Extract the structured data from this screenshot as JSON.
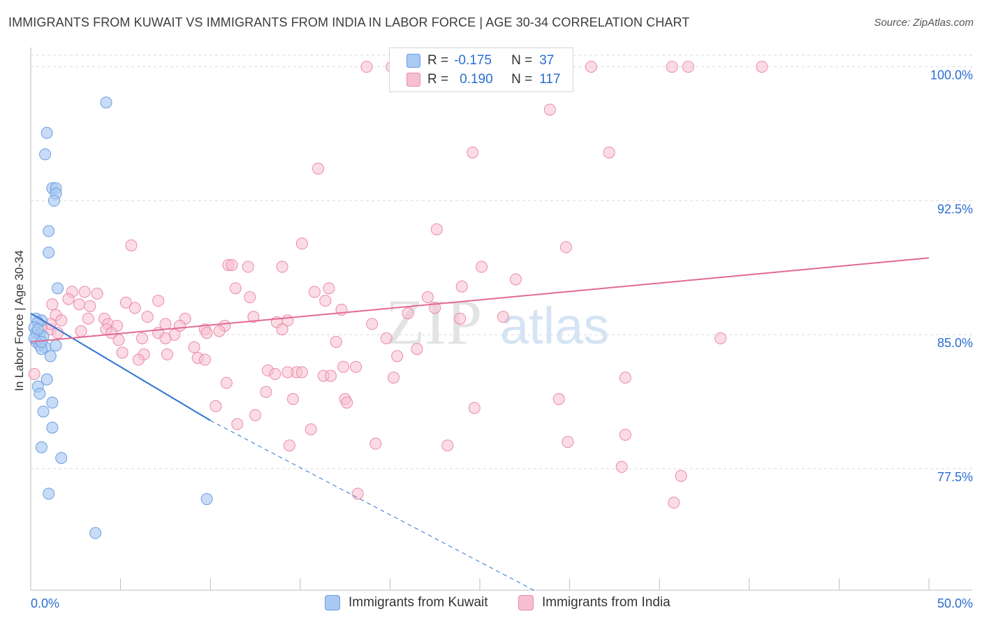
{
  "title": "IMMIGRANTS FROM KUWAIT VS IMMIGRANTS FROM INDIA IN LABOR FORCE | AGE 30-34 CORRELATION CHART",
  "source": "Source: ZipAtlas.com",
  "watermark": {
    "zip": "ZIP",
    "atlas": "atlas"
  },
  "colors": {
    "kuwait_fill": "#aac9f3",
    "kuwait_stroke": "#6a9fe0",
    "kuwait_line": "#2f74d0",
    "india_fill": "#f7bfd0",
    "india_stroke": "#e98aa8",
    "india_line": "#e26a96",
    "value_blue": "#2b6dd0",
    "grid": "#d9d9d9"
  },
  "legend": {
    "r_label": "R =",
    "n_label": "N =",
    "kuwait": {
      "r": "-0.175",
      "n": "37"
    },
    "india": {
      "r": "0.190",
      "n": "117"
    }
  },
  "chart_data": {
    "type": "scatter",
    "xlabel": "",
    "ylabel": "In Labor Force | Age 30-34",
    "xlim": [
      0,
      50
    ],
    "ylim": [
      70.7,
      101.0
    ],
    "x_tick_labels": {
      "left": "0.0%",
      "right": "50.0%"
    },
    "y_ticks": [
      {
        "value": 100.0,
        "label": "100.0%"
      },
      {
        "value": 92.5,
        "label": "92.5%"
      },
      {
        "value": 85.0,
        "label": "85.0%"
      },
      {
        "value": 77.5,
        "label": "77.5%"
      }
    ],
    "grid": "horizontal dashed",
    "legend_position": "top-center",
    "series": [
      {
        "name": "Immigrants from Kuwait",
        "points": [
          [
            4.2,
            98.0
          ],
          [
            0.9,
            96.3
          ],
          [
            0.8,
            95.1
          ],
          [
            1.2,
            93.2
          ],
          [
            1.4,
            93.2
          ],
          [
            1.4,
            92.9
          ],
          [
            1.3,
            92.5
          ],
          [
            1.0,
            90.8
          ],
          [
            1.0,
            89.6
          ],
          [
            1.5,
            87.6
          ],
          [
            0.3,
            85.9
          ],
          [
            0.6,
            85.8
          ],
          [
            0.4,
            85.7
          ],
          [
            0.2,
            85.4
          ],
          [
            0.3,
            85.1
          ],
          [
            0.5,
            85.0
          ],
          [
            0.7,
            84.9
          ],
          [
            0.3,
            84.6
          ],
          [
            0.5,
            84.4
          ],
          [
            1.4,
            84.4
          ],
          [
            0.8,
            84.3
          ],
          [
            0.6,
            84.2
          ],
          [
            1.1,
            83.8
          ],
          [
            0.9,
            82.5
          ],
          [
            0.4,
            82.1
          ],
          [
            0.5,
            81.7
          ],
          [
            1.2,
            81.2
          ],
          [
            0.7,
            80.7
          ],
          [
            1.2,
            79.8
          ],
          [
            0.6,
            78.7
          ],
          [
            1.7,
            78.1
          ],
          [
            1.0,
            76.1
          ],
          [
            9.8,
            75.8
          ],
          [
            3.6,
            73.9
          ],
          [
            0.2,
            84.8
          ],
          [
            0.4,
            85.3
          ],
          [
            0.6,
            84.6
          ]
        ]
      },
      {
        "name": "Immigrants from India",
        "points": [
          [
            18.7,
            100.0
          ],
          [
            20.1,
            100.0
          ],
          [
            31.2,
            100.0
          ],
          [
            35.7,
            100.0
          ],
          [
            36.6,
            100.0
          ],
          [
            40.7,
            100.0
          ],
          [
            28.9,
            97.6
          ],
          [
            24.6,
            95.2
          ],
          [
            32.2,
            95.2
          ],
          [
            16.0,
            94.3
          ],
          [
            22.6,
            90.9
          ],
          [
            5.6,
            90.0
          ],
          [
            15.1,
            90.1
          ],
          [
            29.8,
            89.9
          ],
          [
            11.0,
            88.9
          ],
          [
            11.2,
            88.9
          ],
          [
            12.1,
            88.8
          ],
          [
            14.0,
            88.8
          ],
          [
            25.1,
            88.8
          ],
          [
            27.0,
            88.1
          ],
          [
            11.4,
            87.6
          ],
          [
            16.6,
            87.6
          ],
          [
            24.0,
            87.7
          ],
          [
            2.3,
            87.4
          ],
          [
            3.0,
            87.4
          ],
          [
            3.7,
            87.3
          ],
          [
            15.8,
            87.4
          ],
          [
            12.2,
            87.1
          ],
          [
            22.1,
            87.1
          ],
          [
            2.1,
            87.0
          ],
          [
            5.3,
            86.8
          ],
          [
            7.1,
            86.9
          ],
          [
            16.4,
            86.9
          ],
          [
            1.2,
            86.7
          ],
          [
            2.7,
            86.7
          ],
          [
            3.3,
            86.6
          ],
          [
            5.8,
            86.5
          ],
          [
            17.3,
            86.4
          ],
          [
            22.5,
            86.5
          ],
          [
            21.0,
            86.2
          ],
          [
            1.4,
            86.1
          ],
          [
            6.5,
            86.0
          ],
          [
            12.4,
            86.0
          ],
          [
            3.2,
            85.9
          ],
          [
            4.1,
            85.9
          ],
          [
            8.6,
            85.9
          ],
          [
            23.9,
            85.9
          ],
          [
            1.7,
            85.8
          ],
          [
            13.7,
            85.7
          ],
          [
            4.3,
            85.6
          ],
          [
            14.3,
            85.8
          ],
          [
            19.0,
            85.6
          ],
          [
            4.8,
            85.5
          ],
          [
            7.5,
            85.6
          ],
          [
            8.3,
            85.5
          ],
          [
            10.8,
            85.5
          ],
          [
            9.7,
            85.3
          ],
          [
            10.5,
            85.2
          ],
          [
            14.0,
            85.3
          ],
          [
            1.1,
            85.3
          ],
          [
            4.2,
            85.3
          ],
          [
            4.5,
            85.1
          ],
          [
            9.8,
            85.1
          ],
          [
            7.1,
            85.1
          ],
          [
            8.0,
            85.0
          ],
          [
            1.5,
            85.1
          ],
          [
            6.2,
            84.8
          ],
          [
            7.5,
            84.8
          ],
          [
            19.8,
            84.8
          ],
          [
            4.9,
            84.7
          ],
          [
            38.4,
            84.8
          ],
          [
            9.1,
            84.3
          ],
          [
            5.1,
            84.0
          ],
          [
            6.3,
            83.9
          ],
          [
            7.6,
            83.9
          ],
          [
            20.4,
            83.8
          ],
          [
            9.3,
            83.7
          ],
          [
            6.0,
            83.6
          ],
          [
            9.7,
            83.6
          ],
          [
            17.4,
            83.2
          ],
          [
            18.1,
            83.2
          ],
          [
            13.2,
            83.0
          ],
          [
            14.8,
            82.9
          ],
          [
            14.3,
            82.9
          ],
          [
            15.1,
            82.9
          ],
          [
            13.6,
            82.8
          ],
          [
            16.3,
            82.7
          ],
          [
            16.7,
            82.7
          ],
          [
            10.9,
            82.3
          ],
          [
            20.2,
            82.6
          ],
          [
            33.1,
            82.6
          ],
          [
            13.1,
            81.8
          ],
          [
            14.6,
            81.4
          ],
          [
            17.5,
            81.4
          ],
          [
            29.4,
            81.4
          ],
          [
            17.6,
            81.2
          ],
          [
            10.3,
            81.0
          ],
          [
            24.7,
            80.9
          ],
          [
            12.5,
            80.5
          ],
          [
            11.5,
            80.0
          ],
          [
            15.6,
            79.7
          ],
          [
            33.1,
            79.4
          ],
          [
            19.2,
            78.9
          ],
          [
            23.2,
            78.8
          ],
          [
            14.4,
            78.8
          ],
          [
            29.9,
            79.0
          ],
          [
            32.9,
            77.6
          ],
          [
            36.2,
            77.1
          ],
          [
            18.2,
            76.1
          ],
          [
            35.8,
            75.6
          ],
          [
            0.2,
            82.8
          ],
          [
            1.1,
            85.6
          ],
          [
            2.8,
            85.2
          ],
          [
            0.6,
            85.4
          ],
          [
            26.3,
            86.0
          ],
          [
            21.5,
            84.2
          ],
          [
            17.0,
            84.6
          ]
        ]
      }
    ],
    "trend_lines": [
      {
        "series": "Immigrants from Kuwait",
        "solid": [
          [
            0.0,
            86.2
          ],
          [
            10.0,
            80.2
          ]
        ],
        "dashed_to": [
          28.0,
          70.7
        ]
      },
      {
        "series": "Immigrants from India",
        "solid": [
          [
            0.0,
            84.6
          ],
          [
            50.0,
            89.3
          ]
        ]
      }
    ]
  }
}
